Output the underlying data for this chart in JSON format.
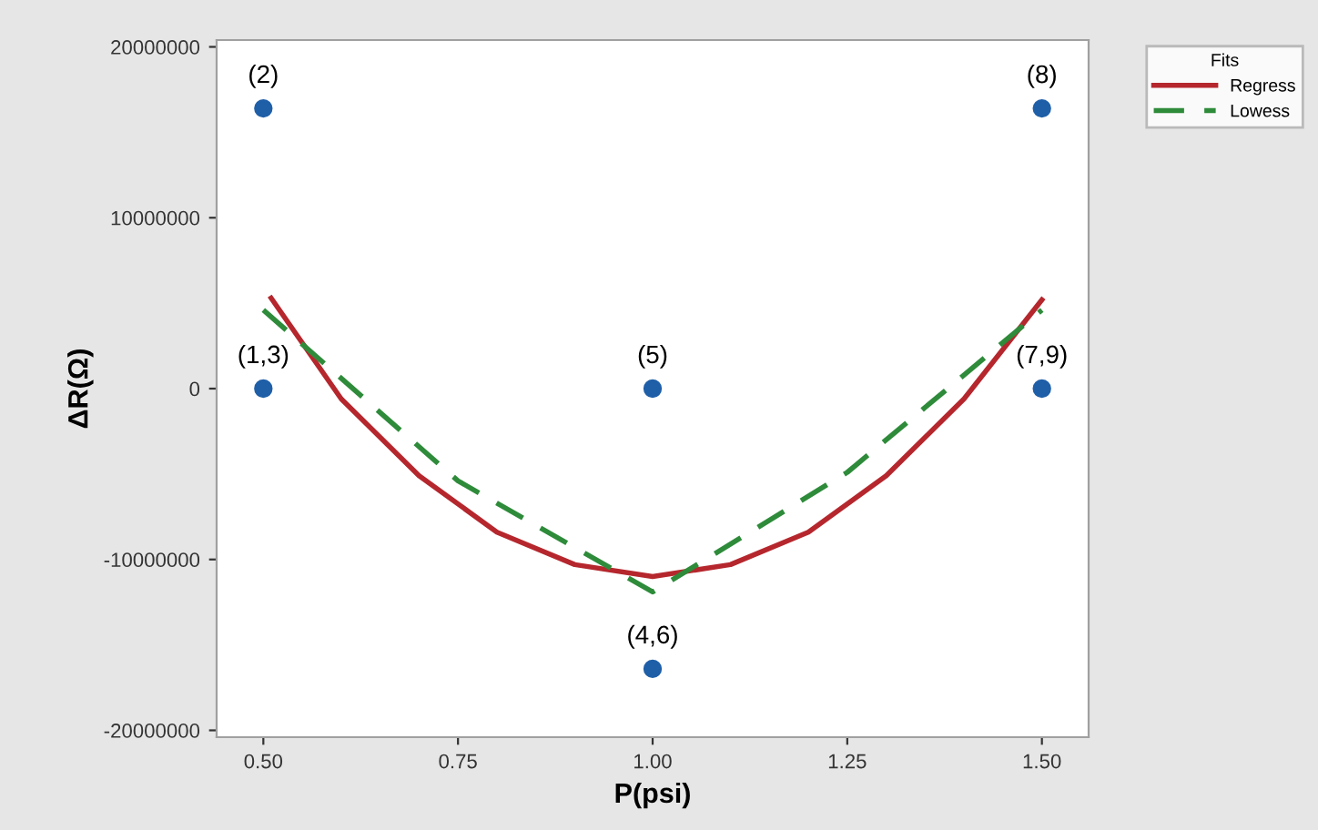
{
  "chart_data": {
    "type": "scatter",
    "xlabel": "P(psi)",
    "ylabel": "ΔR(Ω)",
    "legend_title": "Fits",
    "legend": "top right",
    "xlim": [
      0.44,
      1.56
    ],
    "ylim": [
      -20400000,
      20400000
    ],
    "xticks": [
      {
        "value": 0.5,
        "label": "0.50"
      },
      {
        "value": 0.75,
        "label": "0.75"
      },
      {
        "value": 1.0,
        "label": "1.00"
      },
      {
        "value": 1.25,
        "label": "1.25"
      },
      {
        "value": 1.5,
        "label": "1.50"
      }
    ],
    "yticks": [
      -20000000,
      -10000000,
      0,
      10000000,
      20000000
    ],
    "grid": false,
    "series": [
      {
        "color": "#1f5fa8",
        "marker": "circle",
        "x": [
          0.5,
          0.5,
          1.0,
          1.0,
          1.5,
          1.5
        ],
        "values": [
          16400000,
          0,
          0,
          -16400000,
          16400000,
          0
        ]
      },
      {
        "type": "line",
        "name": "Regress",
        "color": "#b5272d",
        "line_style": "solid",
        "x": [
          0.51,
          0.6,
          0.7,
          0.8,
          0.9,
          1.0,
          1.1,
          1.2,
          1.3,
          1.4,
          1.5
        ],
        "values": [
          5300000,
          -600000,
          -5100000,
          -8400000,
          -10300000,
          -11000000,
          -10300000,
          -8400000,
          -5100000,
          -600000,
          5200000
        ]
      },
      {
        "type": "line",
        "name": "Lowess",
        "color": "#2e8b3a",
        "line_style": "dashed",
        "x": [
          0.5,
          0.75,
          1.0,
          1.25,
          1.5
        ],
        "values": [
          4600000,
          -5400000,
          -11900000,
          -4900000,
          4600000
        ]
      }
    ],
    "annotations": [
      {
        "text": "(2)",
        "x": 0.5,
        "y": 16400000
      },
      {
        "text": "(1,3)",
        "x": 0.5,
        "y": 0
      },
      {
        "text": "(5)",
        "x": 1.0,
        "y": 0
      },
      {
        "text": "(4,6)",
        "x": 1.0,
        "y": -16400000
      },
      {
        "text": "(8)",
        "x": 1.5,
        "y": 16400000
      },
      {
        "text": "(7,9)",
        "x": 1.5,
        "y": 0
      }
    ]
  }
}
